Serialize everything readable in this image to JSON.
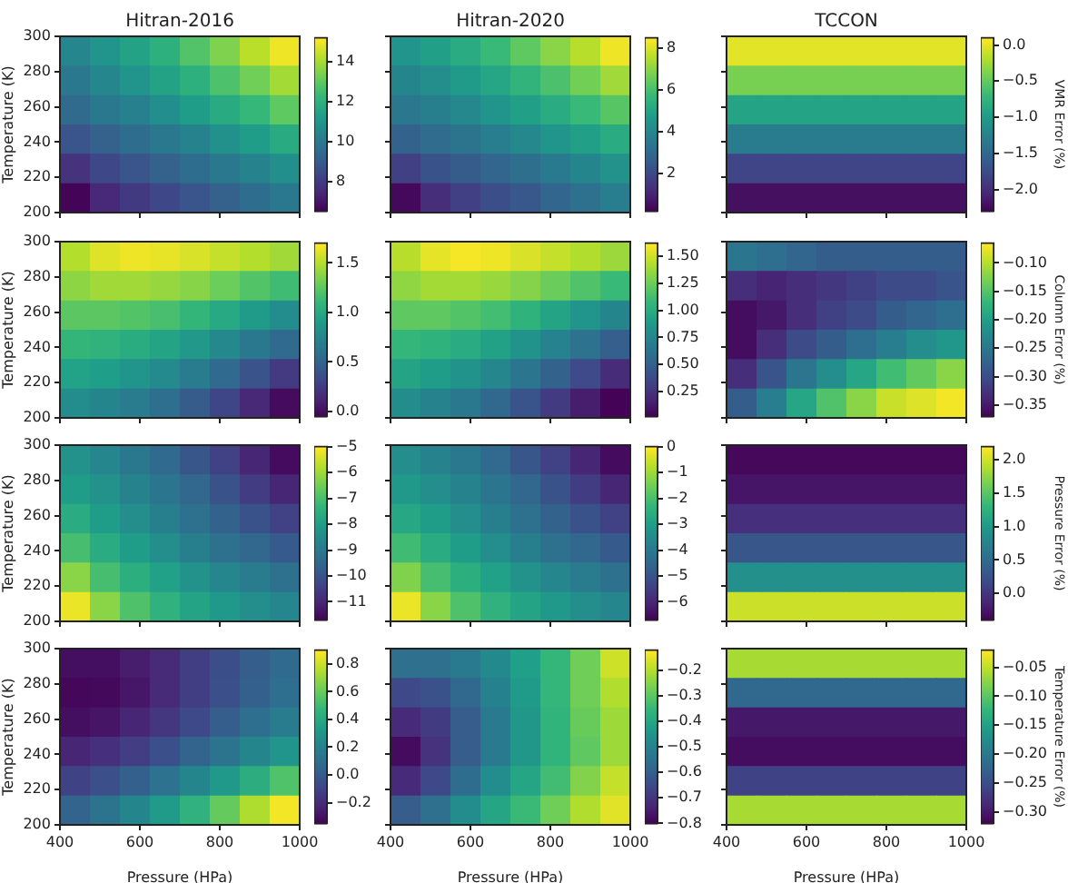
{
  "chart_data": [
    {
      "type": "heatmap",
      "title": "Hitran-2016",
      "ylabel": "Temperature (K)",
      "tick_labels": "y",
      "x": [
        437.5,
        512.5,
        587.5,
        662.5,
        737.5,
        812.5,
        887.5,
        962.5
      ],
      "xlim": [
        400,
        1000
      ],
      "ylim": [
        200,
        300
      ],
      "xticks": [
        400,
        600,
        800,
        1000
      ],
      "yticks": [
        200,
        220,
        240,
        260,
        280,
        300
      ],
      "clim": [
        6.5,
        15.2
      ],
      "cticks": [
        8,
        10,
        12,
        14
      ],
      "cells": [
        [
          10.5,
          11,
          11.5,
          12,
          12.8,
          13.5,
          14.3,
          15
        ],
        [
          10,
          10.5,
          11,
          11.5,
          12,
          12.7,
          13.3,
          14
        ],
        [
          9.5,
          10,
          10.3,
          10.8,
          11.3,
          11.8,
          12.3,
          13
        ],
        [
          8.8,
          9.2,
          9.6,
          10,
          10.4,
          10.9,
          11.3,
          11.8
        ],
        [
          7.8,
          8.4,
          8.8,
          9.2,
          9.6,
          10,
          10.4,
          10.8
        ],
        [
          6.6,
          7.5,
          8,
          8.4,
          8.8,
          9.2,
          9.6,
          10
        ]
      ]
    },
    {
      "type": "heatmap",
      "title": "Hitran-2020",
      "tick_labels": false,
      "x": [
        437.5,
        512.5,
        587.5,
        662.5,
        737.5,
        812.5,
        887.5,
        962.5
      ],
      "xlim": [
        400,
        1000
      ],
      "ylim": [
        200,
        300
      ],
      "xticks": [
        400,
        600,
        800,
        1000
      ],
      "yticks": [
        200,
        220,
        240,
        260,
        280,
        300
      ],
      "clim": [
        0.2,
        8.5
      ],
      "cticks": [
        2,
        4,
        6,
        8
      ],
      "cells": [
        [
          4.5,
          4.9,
          5.3,
          5.8,
          6.4,
          7,
          7.6,
          8.3
        ],
        [
          4,
          4.3,
          4.7,
          5.1,
          5.6,
          6.1,
          6.7,
          7.3
        ],
        [
          3.5,
          3.8,
          4.1,
          4.5,
          4.9,
          5.3,
          5.8,
          6.3
        ],
        [
          2.8,
          3.1,
          3.4,
          3.7,
          4.1,
          4.5,
          4.9,
          5.3
        ],
        [
          1.8,
          2.3,
          2.6,
          2.9,
          3.2,
          3.6,
          4,
          4.4
        ],
        [
          0.4,
          1.3,
          1.8,
          2.2,
          2.5,
          2.9,
          3.3,
          3.7
        ]
      ]
    },
    {
      "type": "heatmap",
      "title": "TCCON",
      "clabel": "VMR Error (%)",
      "tick_labels": false,
      "x": [
        437.5,
        512.5,
        587.5,
        662.5,
        737.5,
        812.5,
        887.5,
        962.5
      ],
      "xlim": [
        400,
        1000
      ],
      "ylim": [
        200,
        300
      ],
      "xticks": [
        400,
        600,
        800,
        1000
      ],
      "yticks": [
        200,
        220,
        240,
        260,
        280,
        300
      ],
      "clim": [
        -2.3,
        0.1
      ],
      "cticks": [
        {
          "value": 0,
          "label": "0.0"
        },
        {
          "value": -0.5,
          "label": "−0.5"
        },
        {
          "value": -1,
          "label": "−1.0"
        },
        {
          "value": -1.5,
          "label": "−1.5"
        },
        {
          "value": -2,
          "label": "−2.0"
        }
      ],
      "cells": [
        [
          0,
          0,
          0,
          0,
          0,
          0,
          0,
          0
        ],
        [
          -0.4,
          -0.4,
          -0.4,
          -0.4,
          -0.4,
          -0.4,
          -0.4,
          -0.4
        ],
        [
          -0.9,
          -0.9,
          -0.9,
          -0.9,
          -0.9,
          -0.9,
          -0.9,
          -0.9
        ],
        [
          -1.3,
          -1.3,
          -1.3,
          -1.3,
          -1.3,
          -1.3,
          -1.3,
          -1.3
        ],
        [
          -1.8,
          -1.8,
          -1.8,
          -1.8,
          -1.8,
          -1.8,
          -1.8,
          -1.8
        ],
        [
          -2.2,
          -2.2,
          -2.2,
          -2.2,
          -2.2,
          -2.2,
          -2.2,
          -2.2
        ]
      ]
    },
    {
      "type": "heatmap",
      "ylabel": "Temperature (K)",
      "tick_labels": "y",
      "x": [
        437.5,
        512.5,
        587.5,
        662.5,
        737.5,
        812.5,
        887.5,
        962.5
      ],
      "xlim": [
        400,
        1000
      ],
      "ylim": [
        200,
        300
      ],
      "xticks": [
        400,
        600,
        800,
        1000
      ],
      "yticks": [
        200,
        220,
        240,
        260,
        280,
        300
      ],
      "clim": [
        -0.05,
        1.7
      ],
      "cticks": [
        {
          "value": 0,
          "label": "0.0"
        },
        {
          "value": 0.5,
          "label": "0.5"
        },
        {
          "value": 1,
          "label": "1.0"
        },
        {
          "value": 1.5,
          "label": "1.5"
        }
      ],
      "cells": [
        [
          1.5,
          1.62,
          1.66,
          1.64,
          1.6,
          1.55,
          1.5,
          1.45
        ],
        [
          1.4,
          1.45,
          1.45,
          1.42,
          1.38,
          1.3,
          1.22,
          1.15
        ],
        [
          1.25,
          1.25,
          1.22,
          1.18,
          1.1,
          1,
          0.9,
          0.8
        ],
        [
          1.1,
          1.08,
          1.03,
          0.97,
          0.88,
          0.77,
          0.65,
          0.55
        ],
        [
          0.95,
          0.92,
          0.86,
          0.78,
          0.68,
          0.55,
          0.4,
          0.25
        ],
        [
          0.8,
          0.75,
          0.68,
          0.58,
          0.46,
          0.32,
          0.15,
          0
        ]
      ]
    },
    {
      "type": "heatmap",
      "tick_labels": false,
      "x": [
        437.5,
        512.5,
        587.5,
        662.5,
        737.5,
        812.5,
        887.5,
        962.5
      ],
      "xlim": [
        400,
        1000
      ],
      "ylim": [
        200,
        300
      ],
      "xticks": [
        400,
        600,
        800,
        1000
      ],
      "yticks": [
        200,
        220,
        240,
        260,
        280,
        300
      ],
      "clim": [
        0.02,
        1.62
      ],
      "cticks": [
        {
          "value": 0.25,
          "label": "0.25"
        },
        {
          "value": 0.5,
          "label": "0.50"
        },
        {
          "value": 0.75,
          "label": "0.75"
        },
        {
          "value": 1,
          "label": "1.00"
        },
        {
          "value": 1.25,
          "label": "1.25"
        },
        {
          "value": 1.5,
          "label": "1.50"
        }
      ],
      "cells": [
        [
          1.45,
          1.56,
          1.6,
          1.58,
          1.53,
          1.48,
          1.43,
          1.38
        ],
        [
          1.35,
          1.4,
          1.4,
          1.37,
          1.32,
          1.25,
          1.17,
          1.1
        ],
        [
          1.22,
          1.22,
          1.18,
          1.13,
          1.05,
          0.95,
          0.85,
          0.75
        ],
        [
          1.08,
          1.05,
          1,
          0.93,
          0.84,
          0.73,
          0.62,
          0.5
        ],
        [
          0.95,
          0.9,
          0.84,
          0.76,
          0.65,
          0.52,
          0.38,
          0.22
        ],
        [
          0.8,
          0.74,
          0.66,
          0.56,
          0.44,
          0.3,
          0.15,
          0.03
        ]
      ]
    },
    {
      "type": "heatmap",
      "clabel": "Column Error (%)",
      "tick_labels": false,
      "x": [
        437.5,
        512.5,
        587.5,
        662.5,
        737.5,
        812.5,
        887.5,
        962.5
      ],
      "xlim": [
        400,
        1000
      ],
      "ylim": [
        200,
        300
      ],
      "xticks": [
        400,
        600,
        800,
        1000
      ],
      "yticks": [
        200,
        220,
        240,
        260,
        280,
        300
      ],
      "clim": [
        -0.37,
        -0.065
      ],
      "cticks": [
        {
          "value": -0.1,
          "label": "−0.10"
        },
        {
          "value": -0.15,
          "label": "−0.15"
        },
        {
          "value": -0.2,
          "label": "−0.20"
        },
        {
          "value": -0.25,
          "label": "−0.25"
        },
        {
          "value": -0.3,
          "label": "−0.30"
        },
        {
          "value": -0.35,
          "label": "−0.35"
        }
      ],
      "cells": [
        [
          -0.25,
          -0.26,
          -0.27,
          -0.28,
          -0.28,
          -0.28,
          -0.28,
          -0.28
        ],
        [
          -0.33,
          -0.34,
          -0.33,
          -0.32,
          -0.31,
          -0.3,
          -0.3,
          -0.29
        ],
        [
          -0.36,
          -0.35,
          -0.33,
          -0.31,
          -0.3,
          -0.28,
          -0.27,
          -0.26
        ],
        [
          -0.36,
          -0.33,
          -0.3,
          -0.28,
          -0.26,
          -0.24,
          -0.22,
          -0.21
        ],
        [
          -0.33,
          -0.29,
          -0.25,
          -0.22,
          -0.19,
          -0.16,
          -0.14,
          -0.12
        ],
        [
          -0.28,
          -0.24,
          -0.19,
          -0.15,
          -0.12,
          -0.09,
          -0.08,
          -0.07
        ]
      ]
    },
    {
      "type": "heatmap",
      "ylabel": "Temperature (K)",
      "tick_labels": "y",
      "x": [
        437.5,
        512.5,
        587.5,
        662.5,
        737.5,
        812.5,
        887.5,
        962.5
      ],
      "xlim": [
        400,
        1000
      ],
      "ylim": [
        200,
        300
      ],
      "xticks": [
        400,
        600,
        800,
        1000
      ],
      "yticks": [
        200,
        220,
        240,
        260,
        280,
        300
      ],
      "clim": [
        -11.7,
        -5
      ],
      "cticks": [
        {
          "value": -5,
          "label": "−5"
        },
        {
          "value": -6,
          "label": "−6"
        },
        {
          "value": -7,
          "label": "−7"
        },
        {
          "value": -8,
          "label": "−8"
        },
        {
          "value": -9,
          "label": "−9"
        },
        {
          "value": -10,
          "label": "−10"
        },
        {
          "value": -11,
          "label": "−11"
        }
      ],
      "cells": [
        [
          -8.3,
          -8.6,
          -9,
          -9.4,
          -9.9,
          -10.4,
          -11,
          -11.5
        ],
        [
          -8,
          -8.3,
          -8.7,
          -9.1,
          -9.5,
          -10,
          -10.5,
          -11
        ],
        [
          -7.6,
          -8,
          -8.4,
          -8.8,
          -9.2,
          -9.6,
          -10,
          -10.4
        ],
        [
          -7,
          -7.6,
          -8,
          -8.4,
          -8.8,
          -9.2,
          -9.5,
          -9.8
        ],
        [
          -6.2,
          -7,
          -7.5,
          -7.9,
          -8.3,
          -8.6,
          -8.9,
          -9.2
        ],
        [
          -5.2,
          -6.2,
          -6.9,
          -7.4,
          -7.8,
          -8.1,
          -8.4,
          -8.6
        ]
      ]
    },
    {
      "type": "heatmap",
      "tick_labels": false,
      "x": [
        437.5,
        512.5,
        587.5,
        662.5,
        737.5,
        812.5,
        887.5,
        962.5
      ],
      "xlim": [
        400,
        1000
      ],
      "ylim": [
        200,
        300
      ],
      "xticks": [
        400,
        600,
        800,
        1000
      ],
      "yticks": [
        200,
        220,
        240,
        260,
        280,
        300
      ],
      "clim": [
        -6.7,
        0
      ],
      "cticks": [
        0,
        {
          "value": -1,
          "label": "−1"
        },
        {
          "value": -2,
          "label": "−2"
        },
        {
          "value": -3,
          "label": "−3"
        },
        {
          "value": -4,
          "label": "−4"
        },
        {
          "value": -5,
          "label": "−5"
        },
        {
          "value": -6,
          "label": "−6"
        }
      ],
      "cells": [
        [
          -3.4,
          -3.7,
          -4,
          -4.4,
          -4.9,
          -5.4,
          -6,
          -6.5
        ],
        [
          -3.1,
          -3.4,
          -3.7,
          -4.1,
          -4.5,
          -5,
          -5.5,
          -6
        ],
        [
          -2.7,
          -3,
          -3.4,
          -3.8,
          -4.2,
          -4.6,
          -5,
          -5.4
        ],
        [
          -2.1,
          -2.6,
          -3,
          -3.4,
          -3.8,
          -4.2,
          -4.5,
          -4.8
        ],
        [
          -1.3,
          -2,
          -2.5,
          -2.9,
          -3.3,
          -3.6,
          -3.9,
          -4.2
        ],
        [
          -0.2,
          -1.2,
          -1.9,
          -2.4,
          -2.8,
          -3.1,
          -3.4,
          -3.6
        ]
      ]
    },
    {
      "type": "heatmap",
      "clabel": "Pressure Error (%)",
      "tick_labels": false,
      "x": [
        437.5,
        512.5,
        587.5,
        662.5,
        737.5,
        812.5,
        887.5,
        962.5
      ],
      "xlim": [
        400,
        1000
      ],
      "ylim": [
        200,
        300
      ],
      "xticks": [
        400,
        600,
        800,
        1000
      ],
      "yticks": [
        200,
        220,
        240,
        260,
        280,
        300
      ],
      "clim": [
        -0.4,
        2.2
      ],
      "cticks": [
        {
          "value": 0,
          "label": "0.0"
        },
        {
          "value": 0.5,
          "label": "0.5"
        },
        {
          "value": 1,
          "label": "1.0"
        },
        {
          "value": 1.5,
          "label": "1.5"
        },
        {
          "value": 2,
          "label": "2.0"
        }
      ],
      "cells": [
        [
          -0.35,
          -0.35,
          -0.35,
          -0.35,
          -0.35,
          -0.35,
          -0.35,
          -0.35
        ],
        [
          -0.25,
          -0.25,
          -0.25,
          -0.25,
          -0.25,
          -0.25,
          -0.25,
          -0.25
        ],
        [
          -0.05,
          -0.05,
          -0.05,
          -0.05,
          -0.05,
          -0.05,
          -0.05,
          -0.05
        ],
        [
          0.3,
          0.3,
          0.3,
          0.3,
          0.3,
          0.3,
          0.3,
          0.3
        ],
        [
          0.9,
          0.9,
          0.9,
          0.9,
          0.9,
          0.9,
          0.9,
          0.9
        ],
        [
          2,
          2,
          2,
          2,
          2,
          2,
          2,
          2
        ]
      ]
    },
    {
      "type": "heatmap",
      "xlabel": "Pressure (HPa)",
      "ylabel": "Temperature (K)",
      "x": [
        437.5,
        512.5,
        587.5,
        662.5,
        737.5,
        812.5,
        887.5,
        962.5
      ],
      "xlim": [
        400,
        1000
      ],
      "ylim": [
        200,
        300
      ],
      "xticks": [
        400,
        600,
        800,
        1000
      ],
      "yticks": [
        200,
        220,
        240,
        260,
        280,
        300
      ],
      "clim": [
        -0.35,
        0.9
      ],
      "cticks": [
        {
          "value": -0.2,
          "label": "−0.2"
        },
        {
          "value": 0,
          "label": "0.0"
        },
        {
          "value": 0.2,
          "label": "0.2"
        },
        {
          "value": 0.4,
          "label": "0.4"
        },
        {
          "value": 0.6,
          "label": "0.6"
        },
        {
          "value": 0.8,
          "label": "0.8"
        }
      ],
      "cells": [
        [
          -0.3,
          -0.3,
          -0.25,
          -0.2,
          -0.12,
          -0.05,
          0.02,
          0.08
        ],
        [
          -0.33,
          -0.32,
          -0.27,
          -0.2,
          -0.12,
          -0.04,
          0.03,
          0.1
        ],
        [
          -0.3,
          -0.28,
          -0.22,
          -0.15,
          -0.07,
          0.02,
          0.1,
          0.17
        ],
        [
          -0.22,
          -0.18,
          -0.12,
          -0.04,
          0.05,
          0.13,
          0.22,
          0.3
        ],
        [
          -0.1,
          -0.04,
          0.03,
          0.12,
          0.22,
          0.32,
          0.43,
          0.55
        ],
        [
          0.05,
          0.13,
          0.22,
          0.33,
          0.45,
          0.6,
          0.75,
          0.88
        ]
      ]
    },
    {
      "type": "heatmap",
      "xlabel": "Pressure (HPa)",
      "tick_labels": "x",
      "x": [
        437.5,
        512.5,
        587.5,
        662.5,
        737.5,
        812.5,
        887.5,
        962.5
      ],
      "xlim": [
        400,
        1000
      ],
      "ylim": [
        200,
        300
      ],
      "xticks": [
        400,
        600,
        800,
        1000
      ],
      "yticks": [
        200,
        220,
        240,
        260,
        280,
        300
      ],
      "clim": [
        -0.8,
        -0.12
      ],
      "cticks": [
        {
          "value": -0.2,
          "label": "−0.2"
        },
        {
          "value": -0.3,
          "label": "−0.3"
        },
        {
          "value": -0.4,
          "label": "−0.4"
        },
        {
          "value": -0.5,
          "label": "−0.5"
        },
        {
          "value": -0.6,
          "label": "−0.6"
        },
        {
          "value": -0.7,
          "label": "−0.7"
        },
        {
          "value": -0.8,
          "label": "−0.8"
        }
      ],
      "cells": [
        [
          -0.55,
          -0.55,
          -0.52,
          -0.48,
          -0.42,
          -0.35,
          -0.27,
          -0.17
        ],
        [
          -0.65,
          -0.63,
          -0.57,
          -0.5,
          -0.43,
          -0.35,
          -0.27,
          -0.2
        ],
        [
          -0.72,
          -0.68,
          -0.6,
          -0.52,
          -0.44,
          -0.36,
          -0.28,
          -0.22
        ],
        [
          -0.78,
          -0.7,
          -0.6,
          -0.52,
          -0.44,
          -0.36,
          -0.29,
          -0.22
        ],
        [
          -0.72,
          -0.65,
          -0.56,
          -0.47,
          -0.4,
          -0.33,
          -0.25,
          -0.18
        ],
        [
          -0.6,
          -0.55,
          -0.47,
          -0.4,
          -0.34,
          -0.27,
          -0.2,
          -0.15
        ]
      ]
    },
    {
      "type": "heatmap",
      "xlabel": "Pressure (HPa)",
      "clabel": "Temperature Error (%)",
      "tick_labels": "x",
      "x": [
        437.5,
        512.5,
        587.5,
        662.5,
        737.5,
        812.5,
        887.5,
        962.5
      ],
      "xlim": [
        400,
        1000
      ],
      "ylim": [
        200,
        300
      ],
      "xticks": [
        400,
        600,
        800,
        1000
      ],
      "yticks": [
        200,
        220,
        240,
        260,
        280,
        300
      ],
      "clim": [
        -0.32,
        -0.02
      ],
      "cticks": [
        {
          "value": -0.05,
          "label": "−0.05"
        },
        {
          "value": -0.1,
          "label": "−0.10"
        },
        {
          "value": -0.15,
          "label": "−0.15"
        },
        {
          "value": -0.2,
          "label": "−0.20"
        },
        {
          "value": -0.25,
          "label": "−0.25"
        },
        {
          "value": -0.3,
          "label": "−0.30"
        }
      ],
      "cells": [
        [
          -0.06,
          -0.06,
          -0.06,
          -0.06,
          -0.06,
          -0.06,
          -0.06,
          -0.06
        ],
        [
          -0.22,
          -0.22,
          -0.22,
          -0.22,
          -0.22,
          -0.22,
          -0.22,
          -0.22
        ],
        [
          -0.3,
          -0.3,
          -0.3,
          -0.3,
          -0.3,
          -0.3,
          -0.3,
          -0.3
        ],
        [
          -0.31,
          -0.31,
          -0.31,
          -0.31,
          -0.31,
          -0.31,
          -0.31,
          -0.31
        ],
        [
          -0.26,
          -0.26,
          -0.26,
          -0.26,
          -0.26,
          -0.26,
          -0.26,
          -0.26
        ],
        [
          -0.06,
          -0.06,
          -0.06,
          -0.06,
          -0.06,
          -0.06,
          -0.06,
          -0.06
        ]
      ]
    }
  ]
}
